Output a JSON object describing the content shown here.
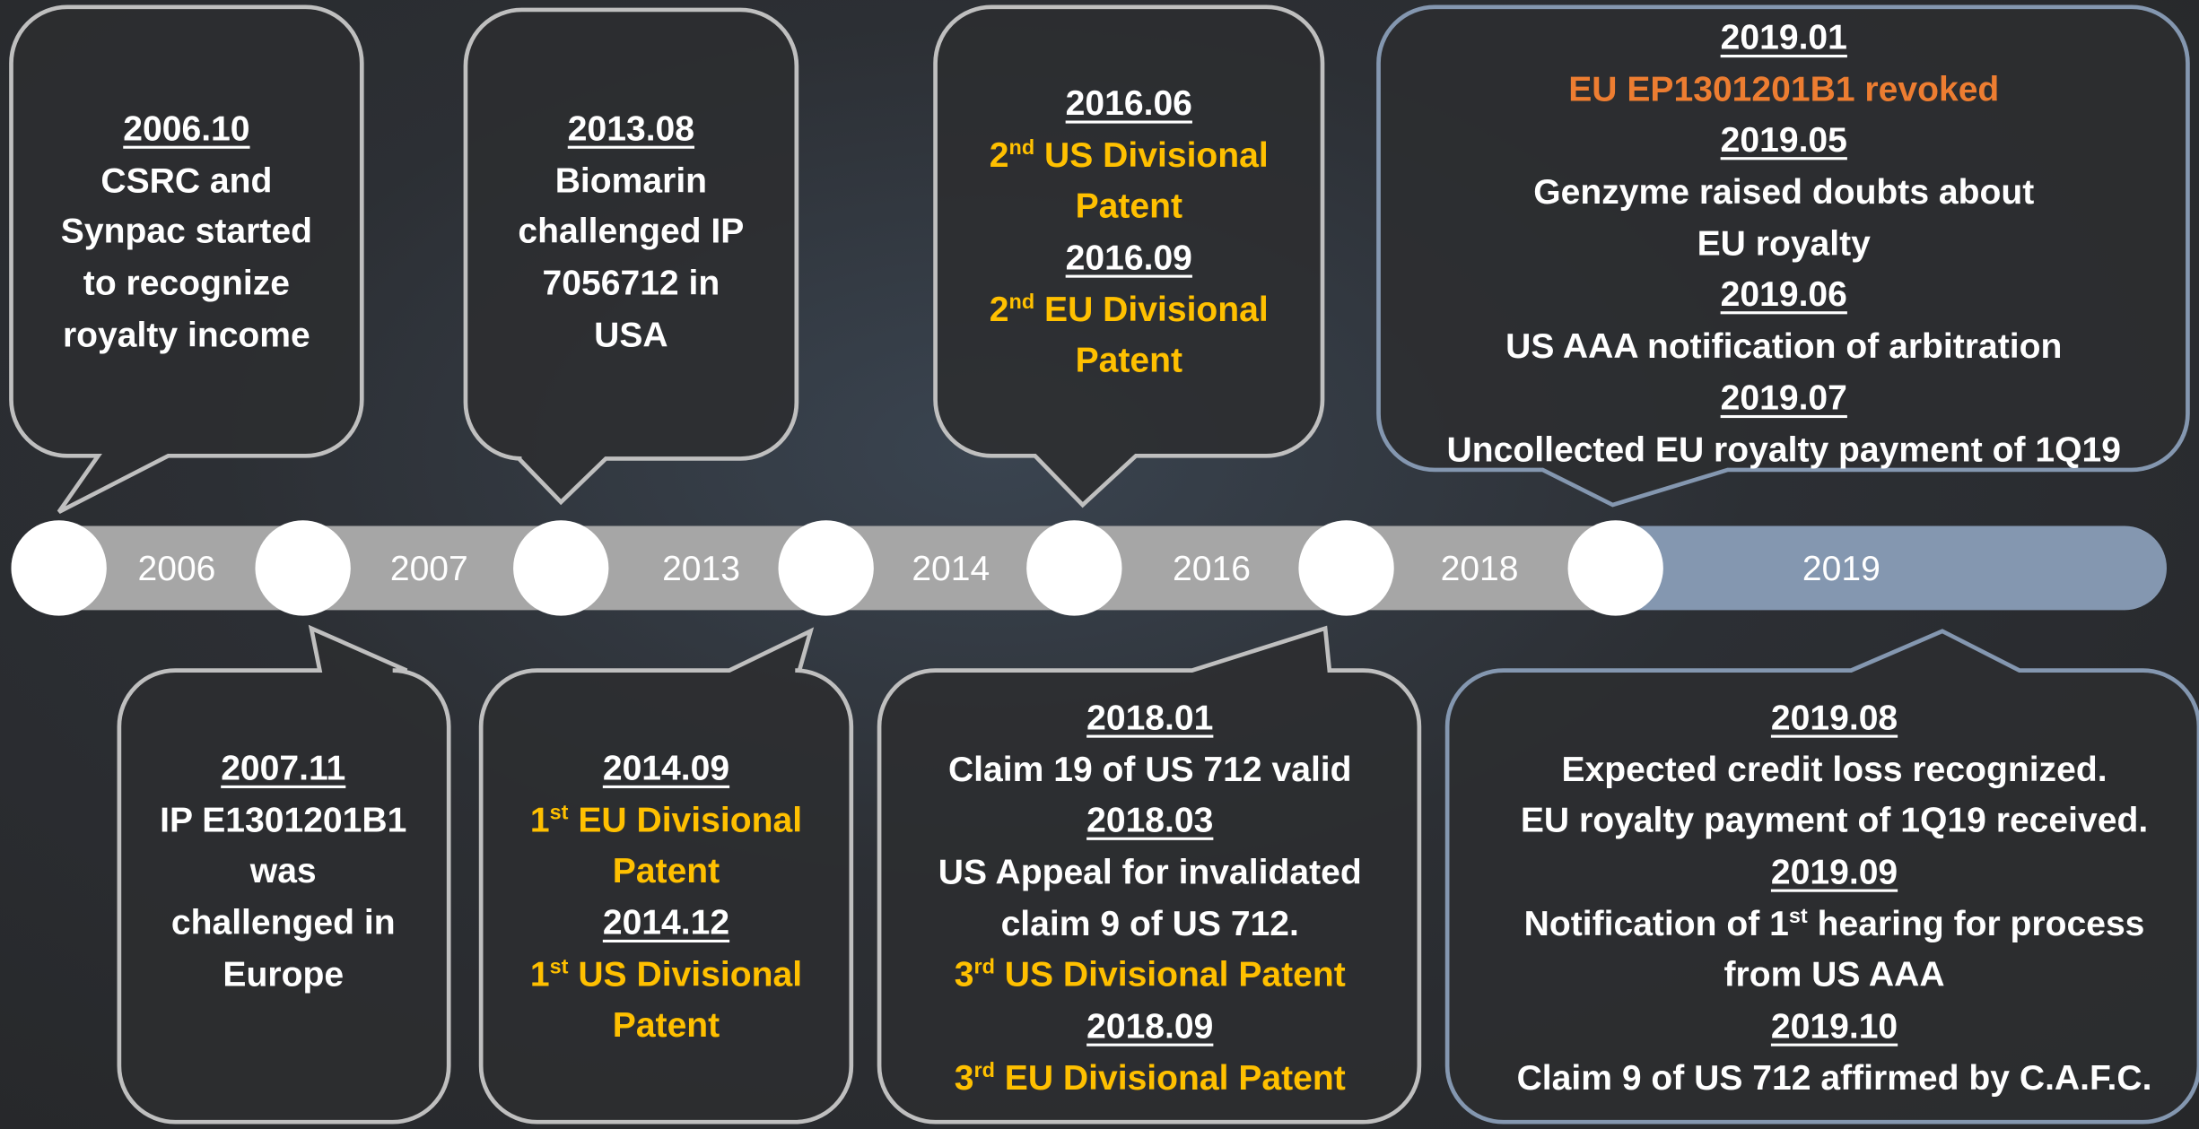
{
  "timeline": {
    "years": [
      "2006",
      "2007",
      "2013",
      "2014",
      "2016",
      "2018",
      "2019"
    ]
  },
  "bubbles": [
    {
      "lines": [
        {
          "style": "date",
          "text": "2006.10"
        },
        {
          "text": "CSRC and"
        },
        {
          "text": "Synpac started"
        },
        {
          "text": "to recognize"
        },
        {
          "text": "royalty income"
        }
      ]
    },
    {
      "lines": [
        {
          "style": "date",
          "text": "2013.08"
        },
        {
          "text": "Biomarin"
        },
        {
          "text": "challenged IP"
        },
        {
          "text": "7056712 in"
        },
        {
          "text": "USA"
        }
      ]
    },
    {
      "lines": [
        {
          "style": "date",
          "text": "2016.06"
        },
        {
          "style": "yellow",
          "parts": [
            {
              "text": "2"
            },
            {
              "text": "nd",
              "sup": true
            },
            {
              "text": " US Divisional"
            }
          ]
        },
        {
          "style": "yellow",
          "text": "Patent"
        },
        {
          "style": "date",
          "text": "2016.09"
        },
        {
          "style": "yellow",
          "parts": [
            {
              "text": "2"
            },
            {
              "text": "nd",
              "sup": true
            },
            {
              "text": " EU Divisional"
            }
          ]
        },
        {
          "style": "yellow",
          "text": "Patent"
        }
      ]
    },
    {
      "lines": [
        {
          "style": "date",
          "text": "2019.01"
        },
        {
          "style": "orange",
          "text": "EU EP1301201B1 revoked"
        },
        {
          "style": "date",
          "text": "2019.05"
        },
        {
          "text": "Genzyme raised doubts about"
        },
        {
          "text": "EU royalty"
        },
        {
          "style": "date",
          "text": "2019.06"
        },
        {
          "text": "US AAA notification of arbitration"
        },
        {
          "style": "date",
          "text": "2019.07"
        },
        {
          "text": "Uncollected EU royalty payment of 1Q19"
        }
      ]
    },
    {
      "lines": [
        {
          "style": "date",
          "text": "2007.11"
        },
        {
          "text": "IP E1301201B1"
        },
        {
          "text": "was"
        },
        {
          "text": "challenged in"
        },
        {
          "text": "Europe"
        }
      ]
    },
    {
      "lines": [
        {
          "style": "date",
          "text": "2014.09"
        },
        {
          "style": "yellow",
          "parts": [
            {
              "text": "1"
            },
            {
              "text": "st",
              "sup": true
            },
            {
              "text": " EU Divisional"
            }
          ]
        },
        {
          "style": "yellow",
          "text": "Patent"
        },
        {
          "style": "date",
          "text": "2014.12"
        },
        {
          "style": "yellow",
          "parts": [
            {
              "text": "1"
            },
            {
              "text": "st",
              "sup": true
            },
            {
              "text": " US Divisional"
            }
          ]
        },
        {
          "style": "yellow",
          "text": "Patent"
        }
      ]
    },
    {
      "lines": [
        {
          "style": "date",
          "text": "2018.01"
        },
        {
          "text": "Claim 19 of US 712 valid"
        },
        {
          "style": "date",
          "text": "2018.03"
        },
        {
          "text": "US Appeal for invalidated"
        },
        {
          "text": "claim 9 of  US 712."
        },
        {
          "style": "yellow",
          "parts": [
            {
              "text": "3"
            },
            {
              "text": "rd",
              "sup": true
            },
            {
              "text": " US Divisional Patent"
            }
          ]
        },
        {
          "style": "date",
          "text": "2018.09"
        },
        {
          "style": "yellow",
          "parts": [
            {
              "text": "3"
            },
            {
              "text": "rd",
              "sup": true
            },
            {
              "text": " EU Divisional Patent"
            }
          ]
        }
      ]
    },
    {
      "lines": [
        {
          "style": "date",
          "text": "2019.08"
        },
        {
          "text": "Expected credit loss recognized."
        },
        {
          "text": "EU royalty payment of 1Q19 received."
        },
        {
          "style": "date",
          "text": "2019.09"
        },
        {
          "parts": [
            {
              "text": "Notification of 1"
            },
            {
              "text": "st",
              "sup": true
            },
            {
              "text": " hearing for process"
            }
          ]
        },
        {
          "text": "from US AAA"
        },
        {
          "style": "date",
          "text": "2019.10"
        },
        {
          "text": "Claim 9 of US 712 affirmed by C.A.F.C."
        }
      ]
    }
  ]
}
